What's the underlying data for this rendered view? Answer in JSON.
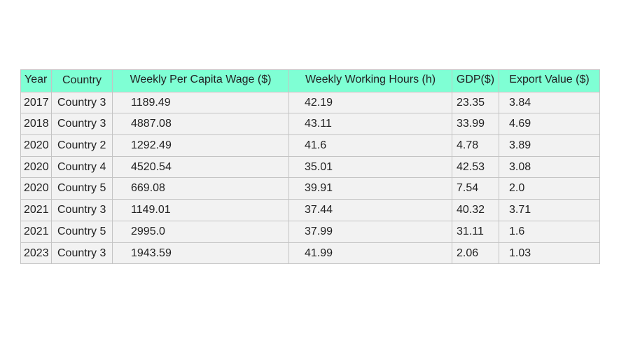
{
  "chart_data": {
    "type": "table",
    "columns": [
      "Year",
      "Country",
      "Weekly Per Capita Wage ($)",
      "Weekly Working Hours (h)",
      "GDP($)",
      "Export Value ($)"
    ],
    "rows": [
      [
        "2017",
        "Country 3",
        "1189.49",
        "42.19",
        "23.35",
        "3.84"
      ],
      [
        "2018",
        "Country 3",
        "4887.08",
        "43.11",
        "33.99",
        "4.69"
      ],
      [
        "2020",
        "Country 2",
        "1292.49",
        "41.6",
        "4.78",
        "3.89"
      ],
      [
        "2020",
        "Country 4",
        "4520.54",
        "35.01",
        "42.53",
        "3.08"
      ],
      [
        "2020",
        "Country 5",
        "669.08",
        "39.91",
        "7.54",
        "2.0"
      ],
      [
        "2021",
        "Country 3",
        "1149.01",
        "37.44",
        "40.32",
        "3.71"
      ],
      [
        "2021",
        "Country 5",
        "2995.0",
        "37.99",
        "31.11",
        "1.6"
      ],
      [
        "2023",
        "Country 3",
        "1943.59",
        "41.99",
        "2.06",
        "1.03"
      ]
    ],
    "header_color": "#7fffd4",
    "cell_color": "#f2f2f2",
    "border_color": "#c4c4c4"
  }
}
